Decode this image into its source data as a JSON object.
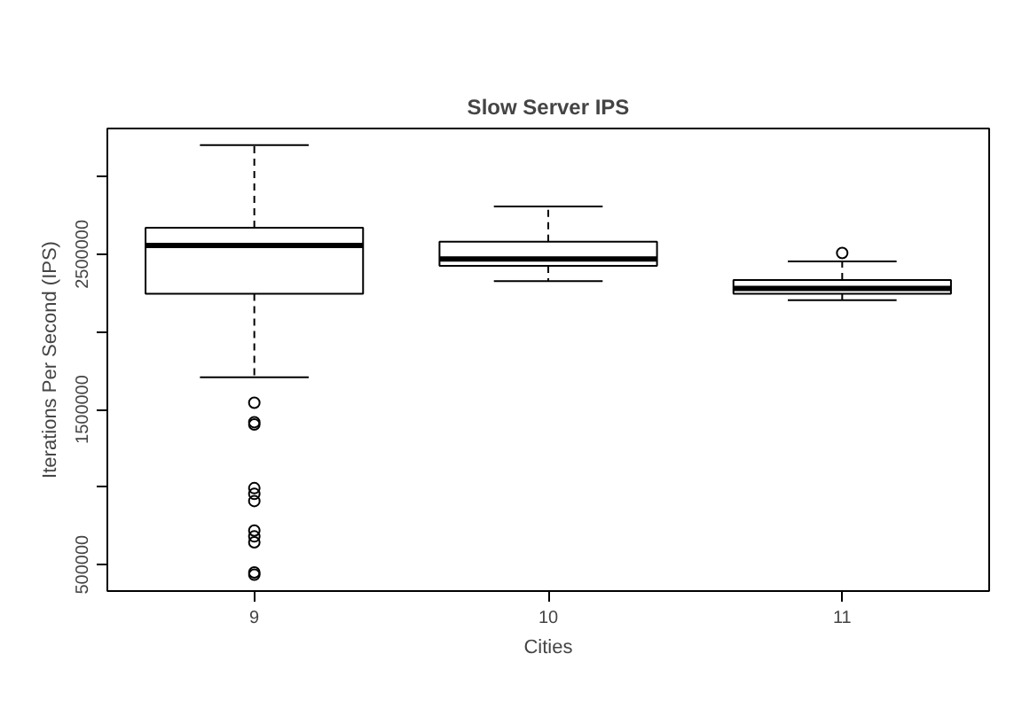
{
  "chart_data": {
    "type": "box",
    "title": "Slow Server IPS",
    "xlabel": "Cities",
    "ylabel": "Iterations Per Second (IPS)",
    "categories": [
      "9",
      "10",
      "11"
    ],
    "boxes": [
      {
        "low": 1707000,
        "q1": 2246000,
        "median": 2557000,
        "q3": 2671000,
        "high": 3203000,
        "outliers": [
          1543000,
          1418000,
          1403000,
          993000,
          956000,
          910000,
          720000,
          682000,
          644000,
          450000,
          435000
        ]
      },
      {
        "low": 2326000,
        "q1": 2425000,
        "median": 2470000,
        "q3": 2580000,
        "high": 2807000
      },
      {
        "low": 2204000,
        "q1": 2246000,
        "median": 2280000,
        "q3": 2334000,
        "high": 2454000,
        "outliers": [
          2508000
        ]
      }
    ],
    "ylim": [
      330000,
      3310000
    ],
    "yticks": [
      500000,
      {
        "value": 1000000,
        "label": null
      },
      1500000,
      {
        "value": 2000000,
        "label": null
      },
      2500000,
      {
        "value": 3000000,
        "label": null
      }
    ],
    "grid": false
  }
}
